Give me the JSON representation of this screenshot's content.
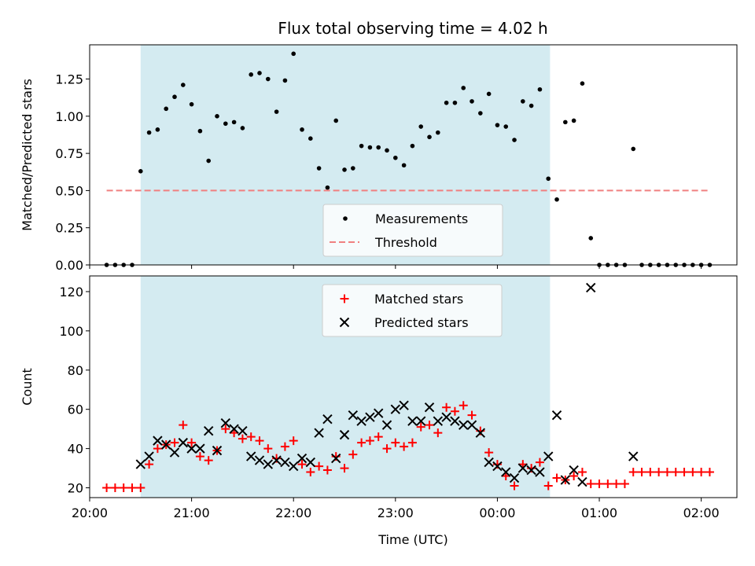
{
  "chart_data": [
    {
      "type": "scatter",
      "title": "Flux total observing time = 4.02 h",
      "xlabel": "",
      "ylabel": "Matched/Predicted stars",
      "xlim": [
        "20:00",
        "02:21"
      ],
      "ylim": [
        0,
        1.48
      ],
      "yticks": [
        0.0,
        0.25,
        0.5,
        0.75,
        1.0,
        1.25
      ],
      "ytick_labels": [
        "0.00",
        "0.25",
        "0.50",
        "0.75",
        "1.00",
        "1.25"
      ],
      "shaded_interval": {
        "start": "20:30",
        "end": "00:31",
        "color": "#d4ebf1"
      },
      "legend_position": "lower-center",
      "series": [
        {
          "name": "Measurements",
          "marker": "dot",
          "color": "#000000",
          "x": [
            "20:10",
            "20:15",
            "20:20",
            "20:25",
            "20:30",
            "20:35",
            "20:40",
            "20:45",
            "20:50",
            "20:55",
            "21:00",
            "21:05",
            "21:10",
            "21:15",
            "21:20",
            "21:25",
            "21:30",
            "21:35",
            "21:40",
            "21:45",
            "21:50",
            "21:55",
            "22:00",
            "22:05",
            "22:10",
            "22:15",
            "22:20",
            "22:25",
            "22:30",
            "22:35",
            "22:40",
            "22:45",
            "22:50",
            "22:55",
            "23:00",
            "23:05",
            "23:10",
            "23:15",
            "23:20",
            "23:25",
            "23:30",
            "23:35",
            "23:40",
            "23:45",
            "23:50",
            "23:55",
            "00:00",
            "00:05",
            "00:10",
            "00:15",
            "00:20",
            "00:25",
            "00:30",
            "00:35",
            "00:40",
            "00:45",
            "00:50",
            "00:55",
            "01:00",
            "01:05",
            "01:10",
            "01:15",
            "01:20",
            "01:25",
            "01:30",
            "01:35",
            "01:40",
            "01:45",
            "01:50",
            "01:55",
            "02:00",
            "02:05"
          ],
          "y": [
            0,
            0,
            0,
            0,
            0.63,
            0.89,
            0.91,
            1.05,
            1.13,
            1.21,
            1.08,
            0.9,
            0.7,
            1.0,
            0.95,
            0.96,
            0.92,
            1.28,
            1.29,
            1.25,
            1.03,
            1.24,
            1.42,
            0.91,
            0.85,
            0.65,
            0.52,
            0.97,
            0.64,
            0.65,
            0.8,
            0.79,
            0.79,
            0.77,
            0.72,
            0.67,
            0.8,
            0.93,
            0.86,
            0.89,
            1.09,
            1.09,
            1.19,
            1.1,
            1.02,
            1.15,
            0.94,
            0.93,
            0.84,
            1.1,
            1.07,
            1.18,
            0.58,
            0.44,
            0.96,
            0.97,
            1.22,
            0.18,
            0,
            0,
            0,
            0,
            0.78,
            0,
            0,
            0,
            0,
            0,
            0,
            0,
            0,
            0
          ]
        },
        {
          "name": "Threshold",
          "style": "dashed",
          "color": "#f08080",
          "x": [
            "20:10",
            "02:05"
          ],
          "y": [
            0.5,
            0.5
          ]
        }
      ]
    },
    {
      "type": "scatter",
      "title": "",
      "xlabel": "Time (UTC)",
      "ylabel": "Count",
      "xlim": [
        "20:00",
        "02:21"
      ],
      "ylim": [
        15,
        128
      ],
      "yticks": [
        20,
        40,
        60,
        80,
        100,
        120
      ],
      "ytick_labels": [
        "20",
        "40",
        "60",
        "80",
        "100",
        "120"
      ],
      "xticks": [
        "20:00",
        "21:00",
        "22:00",
        "23:00",
        "00:00",
        "01:00",
        "02:00"
      ],
      "shaded_interval": {
        "start": "20:30",
        "end": "00:31",
        "color": "#d4ebf1"
      },
      "legend_position": "upper-center",
      "series": [
        {
          "name": "Matched stars",
          "marker": "plus",
          "color": "#ff0000",
          "x": [
            "20:10",
            "20:15",
            "20:20",
            "20:25",
            "20:30",
            "20:35",
            "20:40",
            "20:45",
            "20:50",
            "20:55",
            "21:00",
            "21:05",
            "21:10",
            "21:15",
            "21:20",
            "21:25",
            "21:30",
            "21:35",
            "21:40",
            "21:45",
            "21:50",
            "21:55",
            "22:00",
            "22:05",
            "22:10",
            "22:15",
            "22:20",
            "22:25",
            "22:30",
            "22:35",
            "22:40",
            "22:45",
            "22:50",
            "22:55",
            "23:00",
            "23:05",
            "23:10",
            "23:15",
            "23:20",
            "23:25",
            "23:30",
            "23:35",
            "23:40",
            "23:45",
            "23:50",
            "23:55",
            "00:00",
            "00:05",
            "00:10",
            "00:15",
            "00:20",
            "00:25",
            "00:30",
            "00:35",
            "00:40",
            "00:45",
            "00:50",
            "00:55",
            "01:00",
            "01:05",
            "01:10",
            "01:15",
            "01:20",
            "01:25",
            "01:30",
            "01:35",
            "01:40",
            "01:45",
            "01:50",
            "01:55",
            "02:00",
            "02:05"
          ],
          "y": [
            20,
            20,
            20,
            20,
            20,
            32,
            40,
            42,
            43,
            52,
            43,
            36,
            34,
            39,
            50,
            48,
            45,
            46,
            44,
            40,
            35,
            41,
            44,
            32,
            28,
            31,
            29,
            36,
            30,
            37,
            43,
            44,
            46,
            40,
            43,
            41,
            43,
            51,
            52,
            48,
            61,
            59,
            62,
            57,
            49,
            38,
            32,
            26,
            21,
            32,
            30,
            33,
            21,
            25,
            24,
            26,
            28,
            22,
            22,
            22,
            22,
            22,
            28,
            28,
            28,
            28,
            28,
            28,
            28,
            28,
            28,
            28
          ]
        },
        {
          "name": "Predicted stars",
          "marker": "x",
          "color": "#000000",
          "x": [
            "20:30",
            "20:35",
            "20:40",
            "20:45",
            "20:50",
            "20:55",
            "21:00",
            "21:05",
            "21:10",
            "21:15",
            "21:20",
            "21:25",
            "21:30",
            "21:35",
            "21:40",
            "21:45",
            "21:50",
            "21:55",
            "22:00",
            "22:05",
            "22:10",
            "22:15",
            "22:20",
            "22:25",
            "22:30",
            "22:35",
            "22:40",
            "22:45",
            "22:50",
            "22:55",
            "23:00",
            "23:05",
            "23:10",
            "23:15",
            "23:20",
            "23:25",
            "23:30",
            "23:35",
            "23:40",
            "23:45",
            "23:50",
            "23:55",
            "00:00",
            "00:05",
            "00:10",
            "00:15",
            "00:20",
            "00:25",
            "00:30",
            "00:35",
            "00:40",
            "00:45",
            "00:50",
            "00:55",
            "01:20"
          ],
          "y": [
            32,
            36,
            44,
            42,
            38,
            43,
            40,
            40,
            49,
            39,
            53,
            50,
            49,
            36,
            34,
            32,
            34,
            33,
            31,
            35,
            33,
            48,
            55,
            35,
            47,
            57,
            54,
            56,
            58,
            52,
            60,
            62,
            54,
            54,
            61,
            54,
            56,
            54,
            52,
            52,
            48,
            33,
            31,
            28,
            25,
            30,
            29,
            28,
            36,
            57,
            24,
            29,
            23,
            122,
            36
          ]
        }
      ]
    }
  ]
}
